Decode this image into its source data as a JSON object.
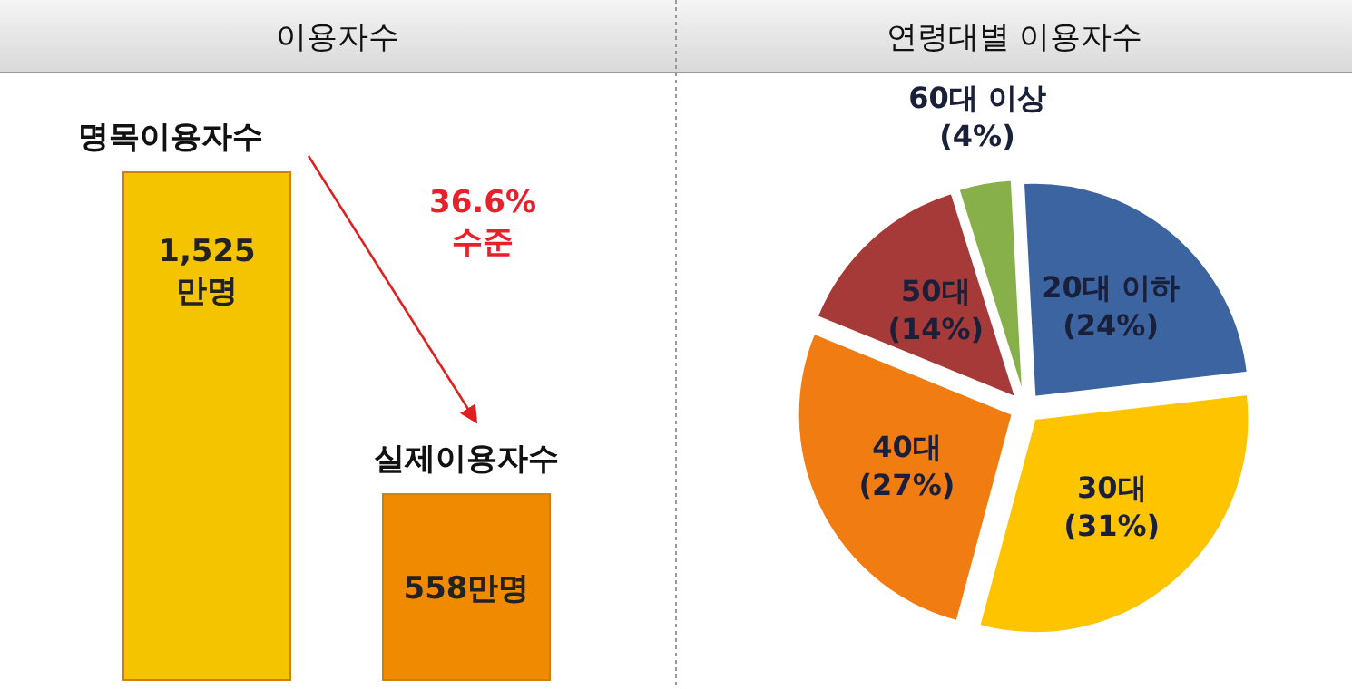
{
  "chart_data": [
    {
      "type": "bar",
      "title": "이용자수",
      "categories": [
        "명목이용자수",
        "실제이용자수"
      ],
      "values": [
        1525,
        558
      ],
      "colors": [
        "#f5c400",
        "#f08a00"
      ],
      "value_labels": [
        "1,525 만명",
        "558만명"
      ],
      "annotations": [
        "36.6% 수준"
      ]
    },
    {
      "type": "pie",
      "title": "연령대별 이용자수",
      "categories": [
        "20대 이하",
        "30대",
        "40대",
        "50대",
        "60대 이상"
      ],
      "values": [
        24,
        31,
        27,
        14,
        4
      ],
      "colors": [
        "#3b64a0",
        "#fec400",
        "#f07c12",
        "#a53a38",
        "#88b04a"
      ],
      "value_labels": [
        "(24%)",
        "(31%)",
        "(27%)",
        "(14%)",
        "(4%)"
      ]
    }
  ]
}
